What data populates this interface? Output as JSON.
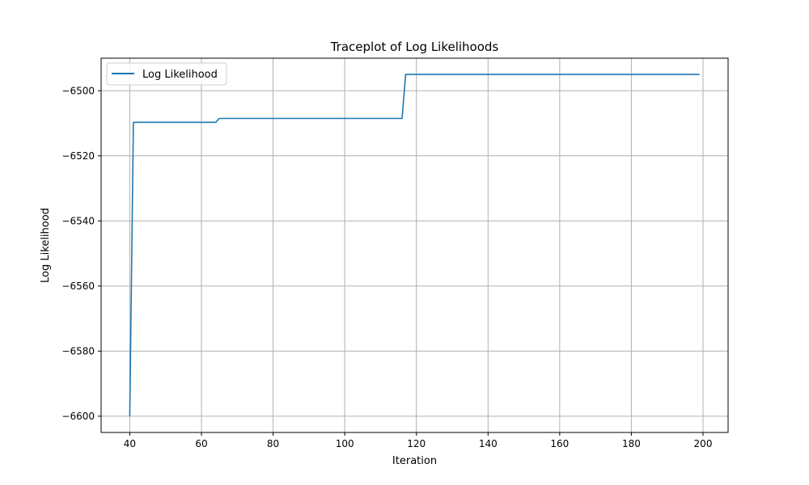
{
  "chart_data": {
    "type": "line",
    "title": "Traceplot of Log Likelihoods",
    "xlabel": "Iteration",
    "ylabel": "Log Likelihood",
    "xlim": [
      32,
      207
    ],
    "ylim": [
      -6605,
      -6490
    ],
    "xticks": [
      40,
      60,
      80,
      100,
      120,
      140,
      160,
      180,
      200
    ],
    "yticks": [
      -6600,
      -6580,
      -6560,
      -6540,
      -6520,
      -6500
    ],
    "grid": true,
    "legend_position": "upper-left",
    "series": [
      {
        "name": "Log Likelihood",
        "color": "#1f77b4",
        "x": [
          40,
          41,
          64,
          65,
          116,
          117,
          199
        ],
        "y": [
          -6600,
          -6509.7,
          -6509.7,
          -6508.5,
          -6508.5,
          -6495,
          -6495
        ]
      }
    ]
  }
}
